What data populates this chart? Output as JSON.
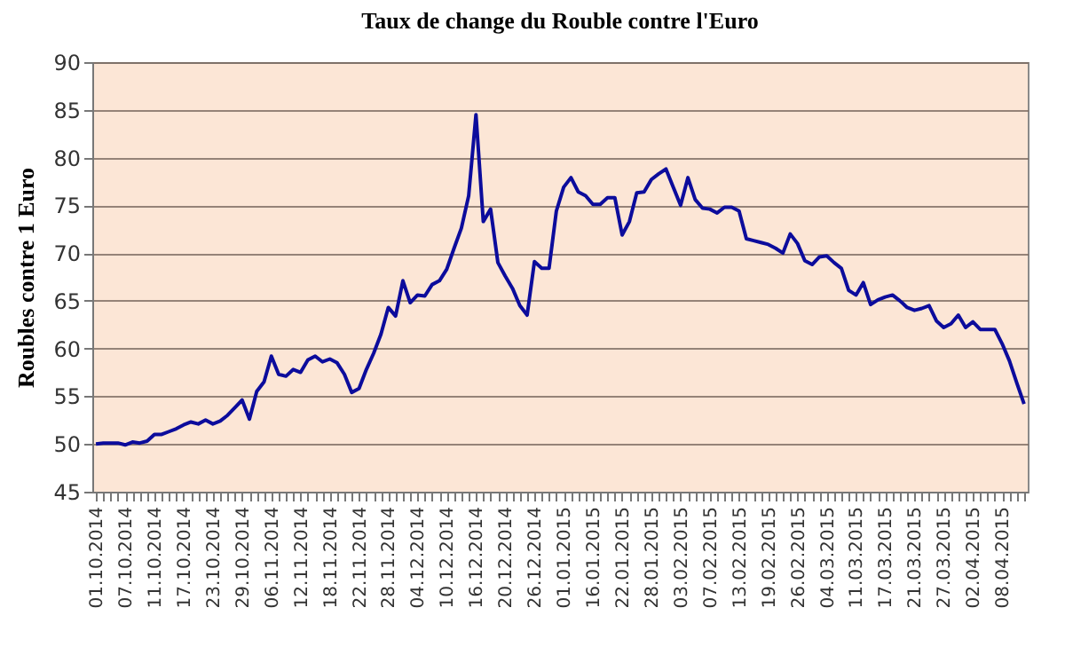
{
  "chart_data": {
    "type": "line",
    "title": "Taux de change du Rouble contre l'Euro",
    "ylabel": "Roubles contre 1 Euro",
    "categories": [
      "01.10.2014",
      null,
      null,
      null,
      "07.10.2014",
      null,
      null,
      null,
      "11.10.2014",
      null,
      null,
      null,
      "17.10.2014",
      null,
      null,
      null,
      "23.10.2014",
      null,
      null,
      null,
      "29.10.2014",
      null,
      null,
      null,
      "06.11.2014",
      null,
      null,
      null,
      "12.11.2014",
      null,
      null,
      null,
      "18.11.2014",
      null,
      null,
      null,
      "22.11.2014",
      null,
      null,
      null,
      "28.11.2014",
      null,
      null,
      null,
      "04.12.2014",
      null,
      null,
      null,
      "10.12.2014",
      null,
      null,
      null,
      "16.12.2014",
      null,
      null,
      null,
      "20.12.2014",
      null,
      null,
      null,
      "26.12.2014",
      null,
      null,
      null,
      "01.01.2015",
      null,
      null,
      null,
      "16.01.2015",
      null,
      null,
      null,
      "22.01.2015",
      null,
      null,
      null,
      "28.01.2015",
      null,
      null,
      null,
      "03.02.2015",
      null,
      null,
      null,
      "07.02.2015",
      null,
      null,
      null,
      "13.02.2015",
      null,
      null,
      null,
      "19.02.2015",
      null,
      null,
      null,
      "26.02.2015",
      null,
      null,
      null,
      "04.03.2015",
      null,
      null,
      null,
      "11.03.2015",
      null,
      null,
      null,
      "17.03.2015",
      null,
      null,
      null,
      "21.03.2015",
      null,
      null,
      null,
      "27.03.2015",
      null,
      null,
      null,
      "02.04.2015",
      null,
      null,
      null,
      "08.04.2015",
      null,
      null,
      null
    ],
    "series": [
      {
        "color": "#0c0c9c",
        "values": [
          50.0,
          50.1,
          50.1,
          50.1,
          49.9,
          50.2,
          50.1,
          50.3,
          51,
          51,
          51.3,
          51.6,
          52,
          52.3,
          52.1,
          52.5,
          52.1,
          52.4,
          53,
          53.8,
          54.6,
          52.6,
          55.5,
          56.5,
          59.2,
          57.3,
          57.1,
          57.8,
          57.5,
          58.8,
          59.2,
          58.6,
          58.9,
          58.5,
          57.3,
          55.4,
          55.8,
          57.8,
          59.5,
          61.5,
          64.3,
          63.4,
          67.1,
          64.8,
          65.6,
          65.5,
          66.7,
          67.1,
          68.3,
          70.5,
          72.6,
          76,
          84.5,
          73.3,
          74.6,
          69,
          67.6,
          66.3,
          64.5,
          63.5,
          69.1,
          68.4,
          68.4,
          74.4,
          76.9,
          77.9,
          76.4,
          76,
          75.1,
          75.1,
          75.8,
          75.8,
          71.9,
          73.3,
          76.3,
          76.4,
          77.7,
          78.3,
          78.8,
          76.9,
          75,
          77.9,
          75.6,
          74.7,
          74.6,
          74.2,
          74.8,
          74.8,
          74.4,
          71.5,
          71.3,
          71.1,
          70.9,
          70.5,
          70,
          72,
          71,
          69.2,
          68.8,
          69.6,
          69.7,
          69,
          68.4,
          66.1,
          65.6,
          66.9,
          64.6,
          65.1,
          65.4,
          65.6,
          65,
          64.3,
          64,
          64.2,
          64.5,
          62.9,
          62.2,
          62.6,
          63.5,
          62.2,
          62.8,
          62,
          62,
          62,
          60.5,
          58.7,
          56.4,
          54.2
        ]
      }
    ],
    "ylim": [
      45,
      90
    ],
    "yticks": [
      45,
      50,
      55,
      60,
      65,
      70,
      75,
      80,
      85,
      90
    ],
    "grid": "y",
    "legend": false,
    "marker": "none",
    "line_style": "solid"
  }
}
